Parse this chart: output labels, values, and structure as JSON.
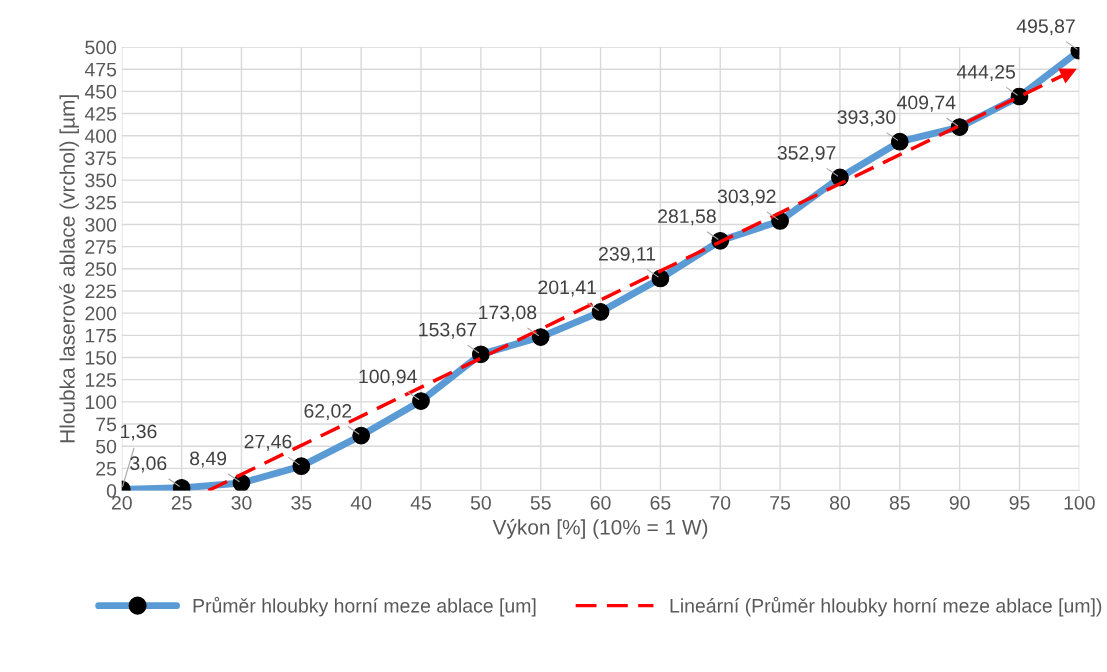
{
  "chart_data": {
    "type": "line",
    "xlabel": "Výkon [%] (10% = 1 W)",
    "ylabel": "Hloubka laserové ablace (vrchol) [µm]",
    "xlim": [
      20,
      100
    ],
    "xticks": [
      20,
      25,
      30,
      35,
      40,
      45,
      50,
      55,
      60,
      65,
      70,
      75,
      80,
      85,
      90,
      95,
      100
    ],
    "ylim": [
      0,
      500
    ],
    "yticks": [
      0,
      25,
      50,
      75,
      100,
      125,
      150,
      175,
      200,
      225,
      250,
      275,
      300,
      325,
      350,
      375,
      400,
      425,
      450,
      475,
      500
    ],
    "grid": true,
    "legend": "bottom",
    "series": [
      {
        "name": "Průměr hloubky horní meze ablace [um]",
        "type": "line",
        "color": "#5b9bd5",
        "marker": "circle",
        "line_style": "solid",
        "x": [
          20,
          25,
          30,
          35,
          40,
          45,
          50,
          55,
          60,
          65,
          70,
          75,
          80,
          85,
          90,
          95,
          100
        ],
        "values": [
          1.36,
          3.06,
          8.49,
          27.46,
          62.02,
          100.94,
          153.67,
          173.08,
          201.41,
          239.11,
          281.58,
          303.92,
          352.97,
          393.3,
          409.74,
          444.25,
          495.87
        ],
        "value_labels": [
          "1,36",
          "3,06",
          "8,49",
          "27,46",
          "62,02",
          "100,94",
          "153,67",
          "173,08",
          "201,41",
          "239,11",
          "281,58",
          "303,92",
          "352,97",
          "393,30",
          "409,74",
          "444,25",
          "495,87"
        ]
      },
      {
        "name": "Lineární (Průměr hloubky horní meze ablace [um])",
        "type": "line",
        "color": "#ff0000",
        "marker": "none",
        "line_style": "dashed",
        "x": [
          27.23,
          100
        ],
        "values": [
          0,
          477
        ]
      }
    ]
  }
}
